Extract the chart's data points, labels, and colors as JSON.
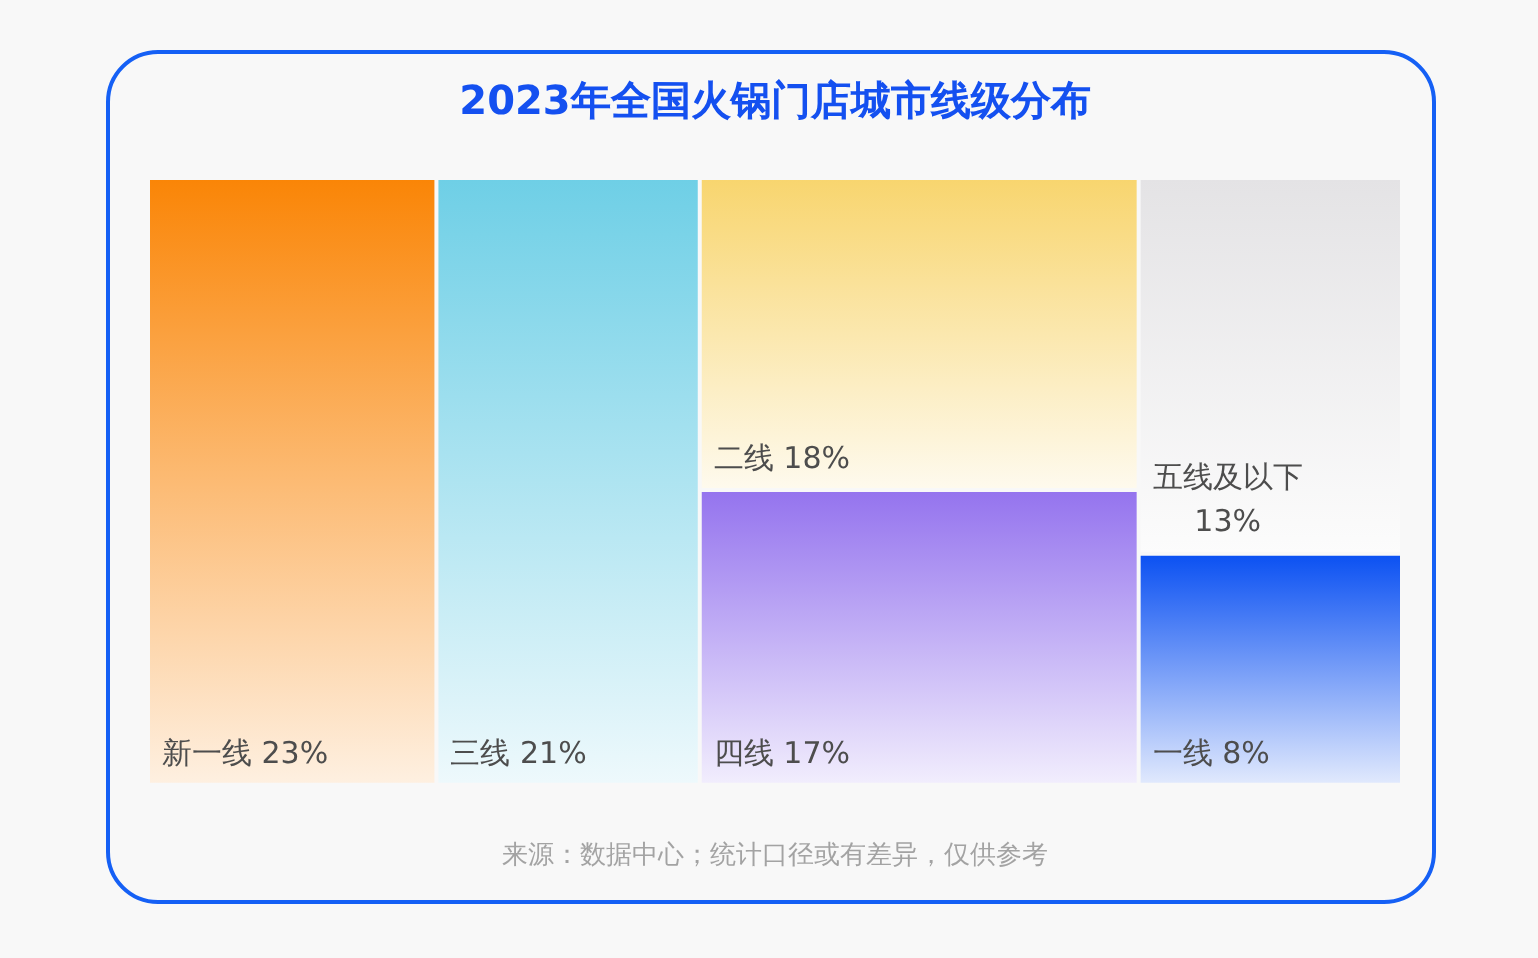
{
  "chart_data": {
    "type": "other",
    "title": "2023年全国火锅门店城市线级分布",
    "categories": [
      "新一线",
      "三线",
      "二线",
      "四线",
      "五线及以下",
      "一线"
    ],
    "values": [
      23,
      21,
      18,
      17,
      13,
      8
    ],
    "value_labels": [
      "23%",
      "21%",
      "18%",
      "17%",
      "13%",
      "8%"
    ],
    "colors": [
      "#fa8506",
      "#6ecfe6",
      "#f8d56e",
      "#9473ee",
      "#e4e3e5",
      "#0a50f2"
    ],
    "annotations": [
      "来源：数据中心；统计口径或有差异，仅供参考"
    ]
  }
}
